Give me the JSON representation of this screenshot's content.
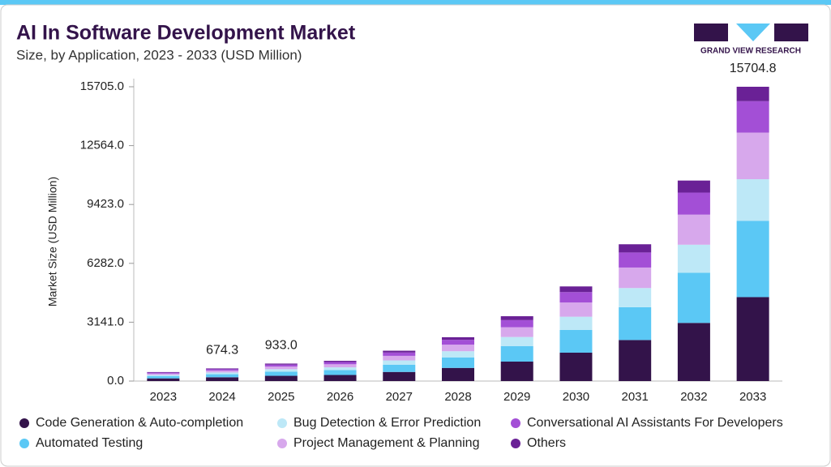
{
  "chart_data": {
    "type": "stacked-bar",
    "title": "AI In Software Development Market",
    "subtitle": "Size, by Application, 2023 - 2033 (USD Million)",
    "brand": "GRAND VIEW RESEARCH",
    "y_label": "Market Size (USD Million)",
    "categories": [
      "2023",
      "2024",
      "2025",
      "2026",
      "2027",
      "2028",
      "2029",
      "2030",
      "2031",
      "2032",
      "2033"
    ],
    "ylim": [
      0,
      15705
    ],
    "yticks": [
      {
        "value": 0,
        "label": "0.0"
      },
      {
        "value": 3141,
        "label": "3141.0"
      },
      {
        "value": 6282,
        "label": "6282.0"
      },
      {
        "value": 9423,
        "label": "9423.0"
      },
      {
        "value": 12564,
        "label": "12564.0"
      },
      {
        "value": 15705,
        "label": "15705.0"
      }
    ],
    "series": [
      {
        "name": "Code Generation & Auto-completion",
        "color": "#33134a",
        "values": [
          144,
          202.3,
          279.9,
          324,
          486,
          702,
          1038,
          1515,
          2190,
          3103,
          4480
        ]
      },
      {
        "name": "Automated Testing",
        "color": "#5bc8f5",
        "values": [
          115,
          161.8,
          223.9,
          259,
          389,
          562,
          830,
          1212,
          1752,
          2675,
          4073
        ]
      },
      {
        "name": "Bug Detection & Error Prediction",
        "color": "#bde8f7",
        "values": [
          67,
          94.4,
          130.6,
          151,
          227,
          328,
          484,
          707,
          1022,
          1498,
          2218
        ]
      },
      {
        "name": "Project Management & Planning",
        "color": "#d7a8ec",
        "values": [
          72,
          101.1,
          140.0,
          162,
          243,
          351,
          519,
          758,
          1095,
          1605,
          2489
        ]
      },
      {
        "name": "Conversational AI Assistants For Developers",
        "color": "#a34fd6",
        "values": [
          53,
          74.2,
          102.6,
          119,
          178,
          257,
          381,
          556,
          803,
          1177,
          1675
        ]
      },
      {
        "name": "Others",
        "color": "#6a2196",
        "values": [
          29,
          40.5,
          56.0,
          65,
          97,
          140,
          208,
          302,
          438,
          642,
          769.8
        ]
      }
    ],
    "totals": {
      "values": [
        null,
        674.3,
        933.0,
        null,
        null,
        null,
        null,
        null,
        null,
        null,
        15704.8
      ],
      "value_labels": [
        null,
        "674.3",
        "933.0",
        null,
        null,
        null,
        null,
        null,
        null,
        null,
        "15704.8"
      ]
    }
  }
}
